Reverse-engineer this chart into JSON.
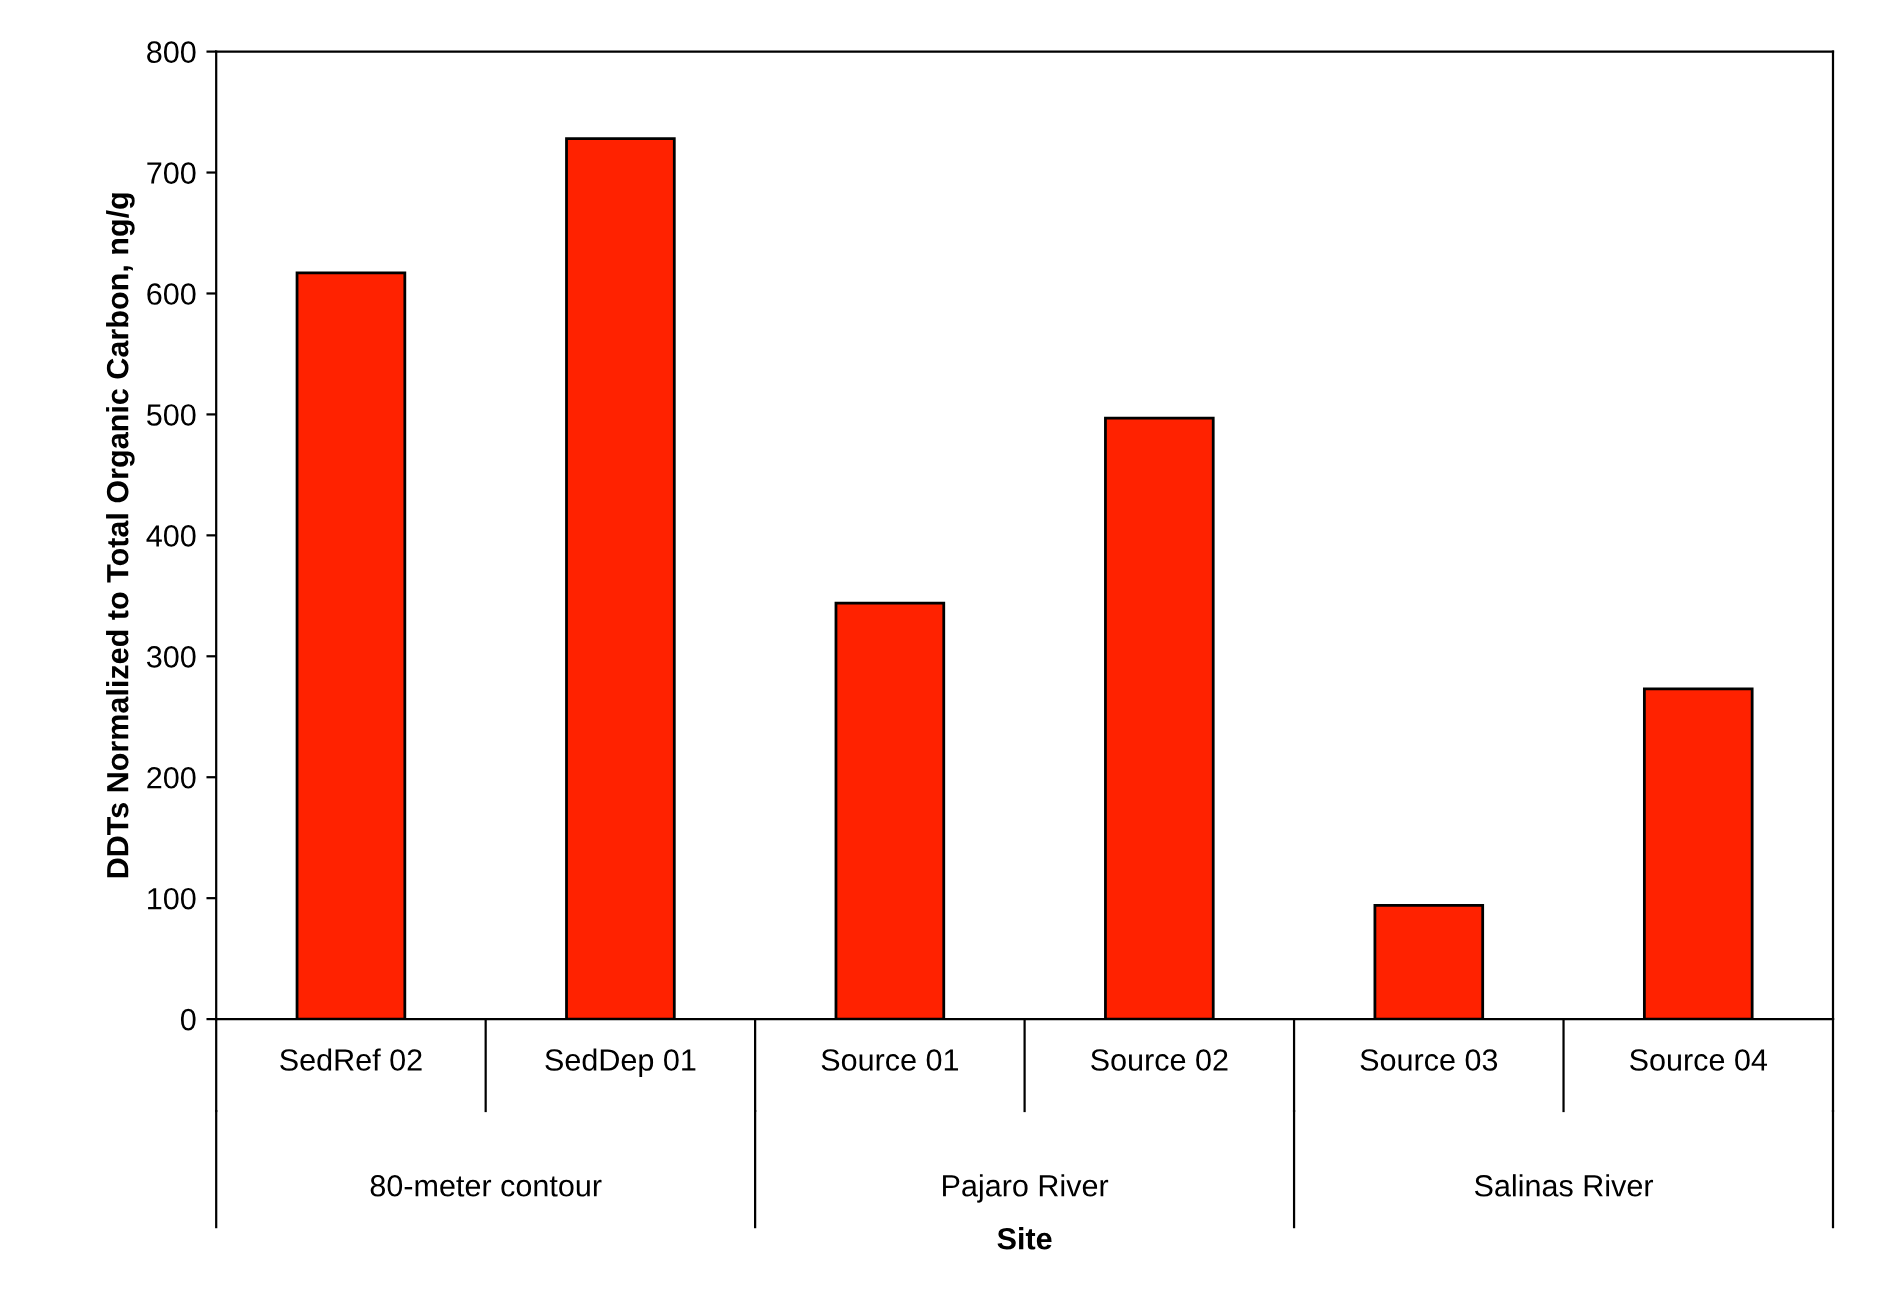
{
  "chart_data": {
    "type": "bar",
    "xlabel": "Site",
    "ylabel": "DDTs Normalized to Total Organic Carbon, ng/g",
    "categories": [
      "SedRef 02",
      "SedDep 01",
      "Source 01",
      "Source 02",
      "Source 03",
      "Source 04"
    ],
    "values": [
      617,
      728,
      344,
      497,
      94,
      273
    ],
    "color": "#ff2200",
    "ylim": [
      0,
      800
    ],
    "yticks": [
      0,
      100,
      200,
      300,
      400,
      500,
      600,
      700,
      800
    ],
    "annotations": [
      "80-meter contour",
      "Pajaro River",
      "Salinas River"
    ],
    "grid": false,
    "legend": false
  }
}
